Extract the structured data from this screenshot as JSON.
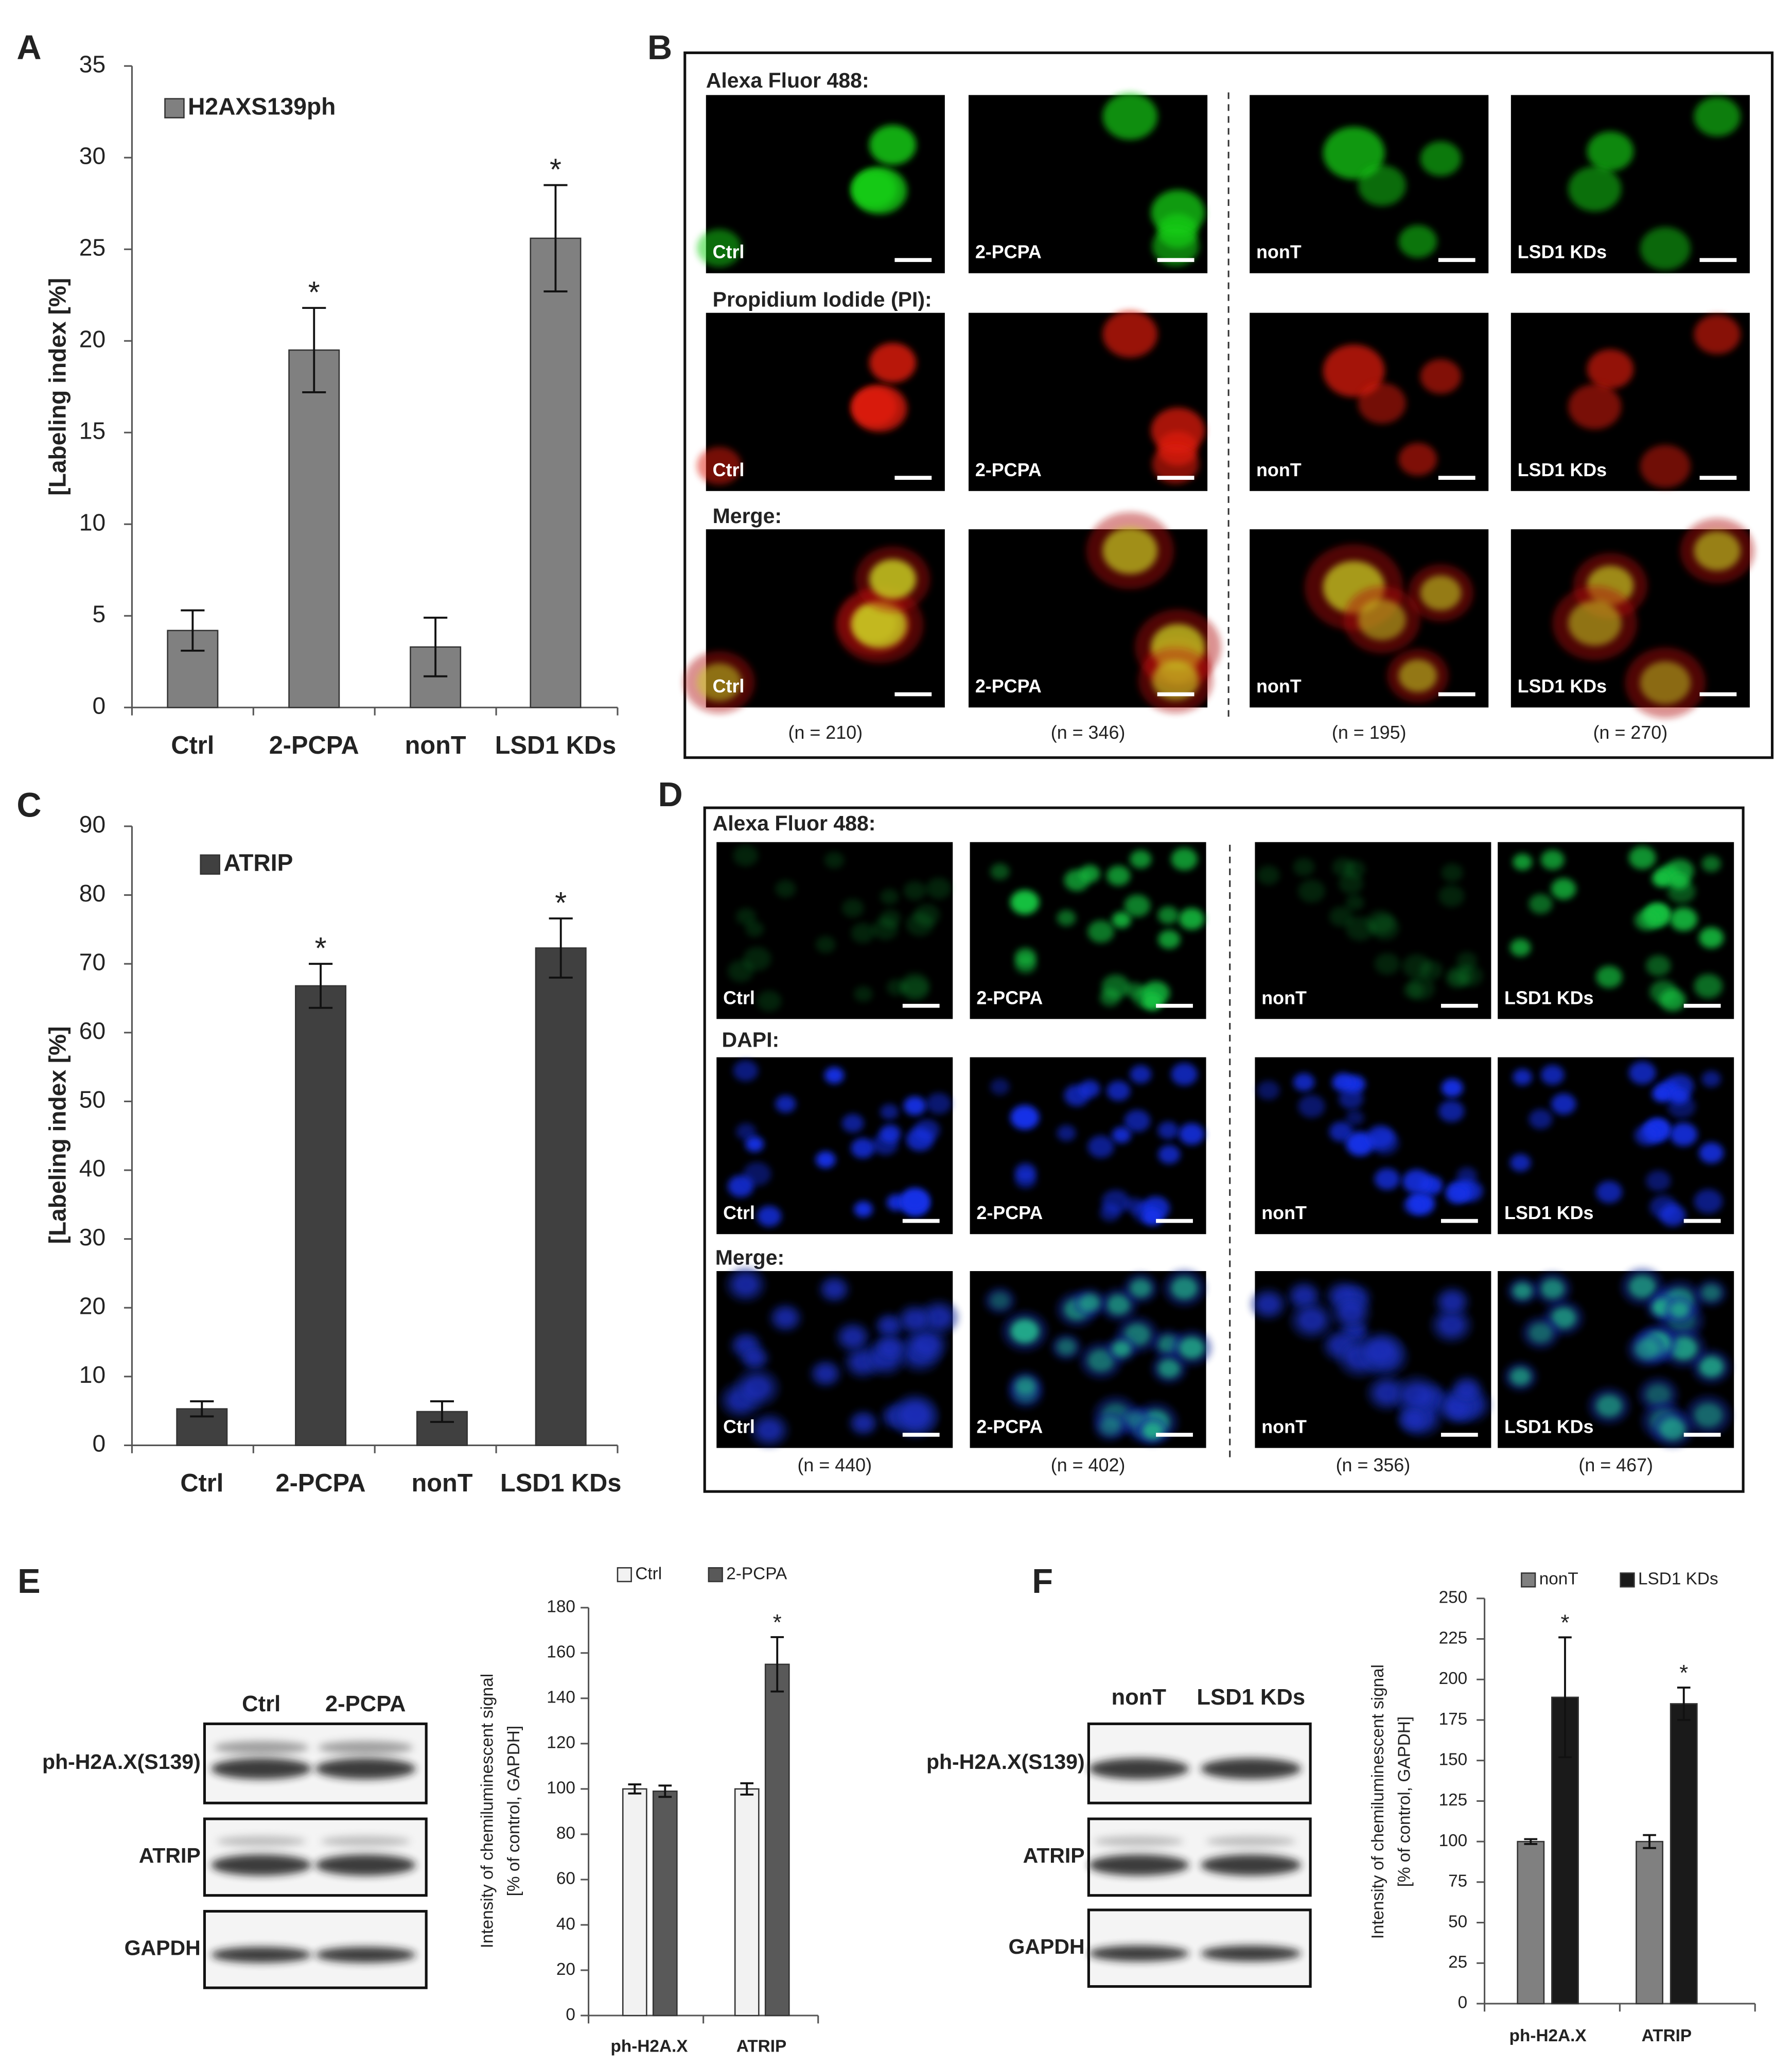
{
  "chart_data": [
    {
      "type": "bar",
      "ylabel": [
        "[Labeling index [%]"
      ],
      "categories": [
        "Ctrl",
        "2-PCPA",
        "nonT",
        "LSD1 KDs"
      ],
      "series": [
        {
          "name": "H2AXS139ph",
          "color": "#808080",
          "values": [
            4.2,
            19.5,
            3.3,
            25.6
          ],
          "errors": [
            1.1,
            2.3,
            1.6,
            2.9
          ],
          "significance": [
            null,
            "*",
            null,
            "*"
          ]
        }
      ],
      "ylim": [
        0,
        35
      ],
      "yticks": [
        0,
        5,
        10,
        15,
        20,
        25,
        30,
        35
      ],
      "legend": "upper left"
    },
    {
      "type": "bar",
      "ylabel": [
        "[Labeling index [%]"
      ],
      "categories": [
        "Ctrl",
        "2-PCPA",
        "nonT",
        "LSD1 KDs"
      ],
      "series": [
        {
          "name": "ATRIP",
          "color": "#404040",
          "values": [
            5.3,
            66.8,
            4.9,
            72.3
          ],
          "errors": [
            1.1,
            3.2,
            1.5,
            4.3
          ],
          "significance": [
            null,
            "*",
            null,
            "*"
          ]
        }
      ],
      "ylim": [
        0,
        90
      ],
      "yticks": [
        0,
        10,
        20,
        30,
        40,
        50,
        60,
        70,
        80,
        90
      ],
      "legend": "upper left"
    },
    {
      "type": "bar",
      "ylabel": [
        "Intensity of chemiluminescent signal",
        "[% of control, GAPDH]"
      ],
      "categories": [
        "ph-H2A.X",
        "ATRIP"
      ],
      "series": [
        {
          "name": "Ctrl",
          "color": "#f2f2f2",
          "values": [
            100,
            100
          ],
          "errors": [
            2,
            2.5
          ],
          "significance": [
            null,
            null
          ]
        },
        {
          "name": "2-PCPA",
          "color": "#595959",
          "values": [
            99,
            155
          ],
          "errors": [
            2.5,
            12
          ],
          "significance": [
            null,
            "*"
          ]
        }
      ],
      "ylim": [
        0,
        180
      ],
      "yticks": [
        0,
        20,
        40,
        60,
        80,
        100,
        120,
        140,
        160,
        180
      ],
      "legend": "top"
    },
    {
      "type": "bar",
      "ylabel": [
        "Intensity of chemiluminescent signal",
        "[% of control, GAPDH]"
      ],
      "categories": [
        "ph-H2A.X",
        "ATRIP"
      ],
      "series": [
        {
          "name": "nonT",
          "color": "#808080",
          "values": [
            100,
            100
          ],
          "errors": [
            1.5,
            4
          ],
          "significance": [
            null,
            null
          ]
        },
        {
          "name": "LSD1 KDs",
          "color": "#1a1a1a",
          "values": [
            189,
            185
          ],
          "errors": [
            37,
            10
          ],
          "significance": [
            "*",
            "*"
          ]
        }
      ],
      "ylim": [
        0,
        250
      ],
      "yticks": [
        0,
        25,
        50,
        75,
        100,
        125,
        150,
        175,
        200,
        225,
        250
      ],
      "legend": "top"
    }
  ],
  "panel_letters": [
    "A",
    "B",
    "C",
    "D",
    "E",
    "F"
  ],
  "micrographs": [
    {
      "channels": [
        "Alexa Fluor 488:",
        "Propidium Iodide (PI):",
        "Merge:"
      ],
      "conditions": [
        "Ctrl",
        "2-PCPA",
        "nonT",
        "LSD1 KDs"
      ],
      "counts": [
        "(n = 210)",
        "(n = 346)",
        "(n = 195)",
        "(n = 270)"
      ]
    },
    {
      "channels": [
        "Alexa Fluor 488:",
        "DAPI:",
        "Merge:"
      ],
      "conditions": [
        "Ctrl",
        "2-PCPA",
        "nonT",
        "LSD1 KDs"
      ],
      "counts": [
        "(n = 440)",
        "(n = 402)",
        "(n = 356)",
        "(n = 467)"
      ]
    }
  ],
  "blots": [
    {
      "lanes": [
        "Ctrl",
        "2-PCPA"
      ],
      "rows": [
        "ph-H2A.X(S139)",
        "ATRIP",
        "GAPDH"
      ]
    },
    {
      "lanes": [
        "nonT",
        "LSD1 KDs"
      ],
      "rows": [
        "ph-H2A.X(S139)",
        "ATRIP",
        "GAPDH"
      ]
    }
  ]
}
